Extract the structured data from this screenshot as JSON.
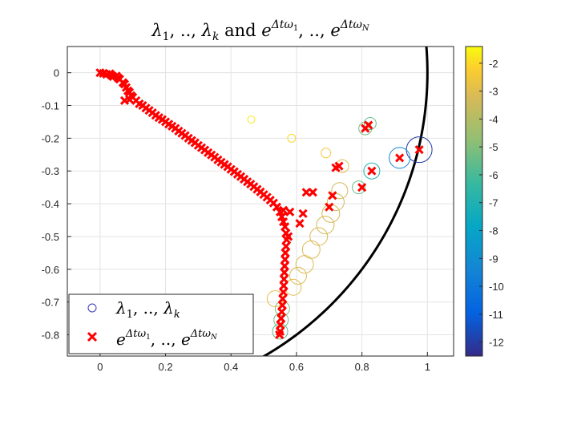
{
  "chart_data": {
    "type": "scatter",
    "title": "λ₁, .., λₖ and e^{Δtω₁}, .., e^{Δtω_N}",
    "title_parts": {
      "lam": "λ",
      "sub1": "1",
      "sep": ", .., ",
      "subk": "k",
      "and": " and ",
      "e": "e",
      "exp1": "Δtω",
      "exp1_sub": "1",
      "expN_sub": "N"
    },
    "xlabel": "",
    "ylabel": "",
    "xlim": [
      -0.1,
      1.08
    ],
    "ylim": [
      -0.865,
      0.08
    ],
    "xticks": [
      0,
      0.2,
      0.4,
      0.6,
      0.8,
      1
    ],
    "xtick_labels": [
      "0",
      "0.2",
      "0.4",
      "0.6",
      "0.8",
      "1"
    ],
    "yticks": [
      0,
      -0.1,
      -0.2,
      -0.3,
      -0.4,
      -0.5,
      -0.6,
      -0.7,
      -0.8
    ],
    "ytick_labels": [
      "0",
      "-0.1",
      "-0.2",
      "-0.3",
      "-0.4",
      "-0.5",
      "-0.6",
      "-0.7",
      "-0.8"
    ],
    "grid": true,
    "unit_circle": {
      "center": [
        0,
        0
      ],
      "radius": 1
    },
    "colorbar": {
      "colormap": "parula",
      "range": [
        -12.5,
        -1.4
      ],
      "ticks": [
        -2,
        -3,
        -4,
        -5,
        -6,
        -7,
        -8,
        -9,
        -10,
        -11,
        -12
      ],
      "tick_labels": [
        "-2",
        "-3",
        "-4",
        "-5",
        "-6",
        "-7",
        "-8",
        "-9",
        "-10",
        "-11",
        "-12"
      ]
    },
    "legend": {
      "position": "bottom-left",
      "entries": [
        {
          "marker": "circle",
          "color": "#3a3ab0",
          "label": "λ₁, .., λₖ"
        },
        {
          "marker": "x",
          "color": "#ff0000",
          "label": "e^{Δtω₁}, .., e^{Δtω_N}"
        }
      ]
    },
    "series": [
      {
        "name": "λ₁, .., λₖ",
        "marker": "circle",
        "note": "c = colorbar value; r = relative marker size",
        "points": [
          {
            "x": 0.975,
            "y": -0.235,
            "c": -12.0,
            "r": 1.6
          },
          {
            "x": 0.915,
            "y": -0.26,
            "c": -9.5,
            "r": 1.3
          },
          {
            "x": 0.83,
            "y": -0.3,
            "c": -7.0,
            "r": 1.0
          },
          {
            "x": 0.79,
            "y": -0.35,
            "c": -5.5,
            "r": 0.8
          },
          {
            "x": 0.81,
            "y": -0.17,
            "c": -5.3,
            "r": 0.8
          },
          {
            "x": 0.825,
            "y": -0.155,
            "c": -5.6,
            "r": 0.75
          },
          {
            "x": 0.55,
            "y": -0.79,
            "c": -5.6,
            "r": 0.95
          },
          {
            "x": 0.553,
            "y": -0.755,
            "c": -5.3,
            "r": 0.9
          },
          {
            "x": 0.557,
            "y": -0.72,
            "c": -5.0,
            "r": 0.9
          },
          {
            "x": 0.732,
            "y": -0.36,
            "c": -3.4,
            "r": 1.0
          },
          {
            "x": 0.72,
            "y": -0.395,
            "c": -3.4,
            "r": 1.05
          },
          {
            "x": 0.705,
            "y": -0.43,
            "c": -3.3,
            "r": 1.1
          },
          {
            "x": 0.688,
            "y": -0.465,
            "c": -3.3,
            "r": 1.1
          },
          {
            "x": 0.668,
            "y": -0.5,
            "c": -3.2,
            "r": 1.1
          },
          {
            "x": 0.645,
            "y": -0.54,
            "c": -3.2,
            "r": 1.1
          },
          {
            "x": 0.625,
            "y": -0.585,
            "c": -3.1,
            "r": 1.1
          },
          {
            "x": 0.605,
            "y": -0.62,
            "c": -3.1,
            "r": 1.05
          },
          {
            "x": 0.59,
            "y": -0.655,
            "c": -3.0,
            "r": 1.0
          },
          {
            "x": 0.535,
            "y": -0.69,
            "c": -3.0,
            "r": 1.0
          },
          {
            "x": 0.74,
            "y": -0.285,
            "c": -3.0,
            "r": 0.8
          },
          {
            "x": 0.69,
            "y": -0.245,
            "c": -2.5,
            "r": 0.6
          },
          {
            "x": 0.585,
            "y": -0.2,
            "c": -2.0,
            "r": 0.5
          },
          {
            "x": 0.462,
            "y": -0.143,
            "c": -1.7,
            "r": 0.45
          }
        ]
      },
      {
        "name": "e^{Δtω₁}, .., e^{Δtω_N}",
        "marker": "x",
        "color": "#ff0000",
        "points": [
          [
            0.0,
            0.0
          ],
          [
            0.01,
            -0.002
          ],
          [
            0.02,
            -0.005
          ],
          [
            0.03,
            -0.003
          ],
          [
            0.035,
            -0.008
          ],
          [
            0.04,
            -0.012
          ],
          [
            0.05,
            -0.01
          ],
          [
            0.055,
            -0.016
          ],
          [
            0.06,
            -0.02
          ],
          [
            0.07,
            -0.03
          ],
          [
            0.075,
            -0.035
          ],
          [
            0.08,
            -0.045
          ],
          [
            0.085,
            -0.055
          ],
          [
            0.09,
            -0.06
          ],
          [
            0.095,
            -0.07
          ],
          [
            0.075,
            -0.085
          ],
          [
            0.09,
            -0.082
          ],
          [
            0.1,
            -0.075
          ],
          [
            0.11,
            -0.085
          ],
          [
            0.12,
            -0.095
          ],
          [
            0.13,
            -0.1
          ],
          [
            0.14,
            -0.108
          ],
          [
            0.15,
            -0.115
          ],
          [
            0.16,
            -0.122
          ],
          [
            0.17,
            -0.13
          ],
          [
            0.18,
            -0.137
          ],
          [
            0.19,
            -0.143
          ],
          [
            0.2,
            -0.15
          ],
          [
            0.21,
            -0.157
          ],
          [
            0.22,
            -0.163
          ],
          [
            0.23,
            -0.17
          ],
          [
            0.24,
            -0.178
          ],
          [
            0.25,
            -0.185
          ],
          [
            0.26,
            -0.192
          ],
          [
            0.27,
            -0.2
          ],
          [
            0.28,
            -0.207
          ],
          [
            0.29,
            -0.214
          ],
          [
            0.3,
            -0.222
          ],
          [
            0.31,
            -0.229
          ],
          [
            0.32,
            -0.236
          ],
          [
            0.33,
            -0.244
          ],
          [
            0.34,
            -0.251
          ],
          [
            0.35,
            -0.258
          ],
          [
            0.36,
            -0.266
          ],
          [
            0.37,
            -0.273
          ],
          [
            0.38,
            -0.28
          ],
          [
            0.39,
            -0.287
          ],
          [
            0.4,
            -0.295
          ],
          [
            0.41,
            -0.302
          ],
          [
            0.42,
            -0.31
          ],
          [
            0.43,
            -0.317
          ],
          [
            0.44,
            -0.325
          ],
          [
            0.45,
            -0.333
          ],
          [
            0.46,
            -0.34
          ],
          [
            0.47,
            -0.348
          ],
          [
            0.48,
            -0.356
          ],
          [
            0.49,
            -0.364
          ],
          [
            0.5,
            -0.372
          ],
          [
            0.51,
            -0.38
          ],
          [
            0.52,
            -0.389
          ],
          [
            0.53,
            -0.398
          ],
          [
            0.54,
            -0.41
          ],
          [
            0.55,
            -0.425
          ],
          [
            0.555,
            -0.44
          ],
          [
            0.56,
            -0.455
          ],
          [
            0.565,
            -0.47
          ],
          [
            0.568,
            -0.49
          ],
          [
            0.57,
            -0.51
          ],
          [
            0.568,
            -0.53
          ],
          [
            0.566,
            -0.55
          ],
          [
            0.565,
            -0.57
          ],
          [
            0.564,
            -0.59
          ],
          [
            0.563,
            -0.61
          ],
          [
            0.562,
            -0.63
          ],
          [
            0.561,
            -0.65
          ],
          [
            0.56,
            -0.67
          ],
          [
            0.558,
            -0.69
          ],
          [
            0.557,
            -0.71
          ],
          [
            0.555,
            -0.73
          ],
          [
            0.553,
            -0.75
          ],
          [
            0.551,
            -0.77
          ],
          [
            0.55,
            -0.79
          ],
          [
            0.548,
            -0.8
          ],
          [
            0.56,
            -0.42
          ],
          [
            0.58,
            -0.425
          ],
          [
            0.575,
            -0.5
          ],
          [
            0.62,
            -0.43
          ],
          [
            0.61,
            -0.46
          ],
          [
            0.63,
            -0.365
          ],
          [
            0.65,
            -0.365
          ],
          [
            0.7,
            -0.41
          ],
          [
            0.71,
            -0.375
          ],
          [
            0.72,
            -0.29
          ],
          [
            0.73,
            -0.285
          ],
          [
            0.8,
            -0.35
          ],
          [
            0.83,
            -0.3
          ],
          [
            0.81,
            -0.17
          ],
          [
            0.82,
            -0.16
          ],
          [
            0.915,
            -0.26
          ],
          [
            0.975,
            -0.235
          ]
        ]
      }
    ]
  }
}
